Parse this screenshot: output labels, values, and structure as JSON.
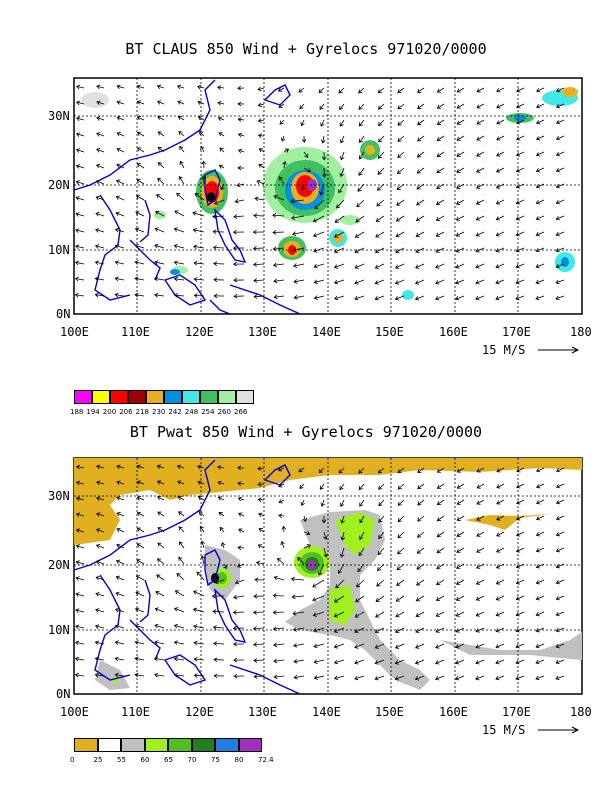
{
  "panels": [
    {
      "title": "BT CLAUS 850 Wind + Gyrelocs 971020/0000",
      "lon_labels": [
        "100E",
        "110E",
        "120E",
        "130E",
        "140E",
        "150E",
        "160E",
        "170E",
        "180"
      ],
      "lat_labels": [
        "0N",
        "10N",
        "20N",
        "30N"
      ],
      "scale_label": "15 M/S",
      "legend_colors": [
        "#ff00ff",
        "#ffff00",
        "#ff0000",
        "#a00000",
        "#e8b020",
        "#0090e0",
        "#40e8e8",
        "#40c060",
        "#a0f0a0",
        "#e0e0e0"
      ],
      "legend_labels": [
        "188",
        "194",
        "200",
        "206",
        "218",
        "230",
        "242",
        "248",
        "254",
        "260",
        "266"
      ]
    },
    {
      "title": "BT Pwat 850 Wind + Gyrelocs 971020/0000",
      "lon_labels": [
        "100E",
        "110E",
        "120E",
        "130E",
        "140E",
        "150E",
        "160E",
        "170E",
        "180"
      ],
      "lat_labels": [
        "0N",
        "10N",
        "20N",
        "30N"
      ],
      "scale_label": "15 M/S",
      "legend_colors": [
        "#e0b020",
        "#ffffff",
        "#c0c0c0",
        "#a0f020",
        "#50c020",
        "#208020",
        "#2080e0",
        "#a030c0"
      ],
      "legend_labels": [
        "0",
        "25",
        "55",
        "60",
        "65",
        "70",
        "75",
        "80",
        "72.4"
      ]
    }
  ]
}
